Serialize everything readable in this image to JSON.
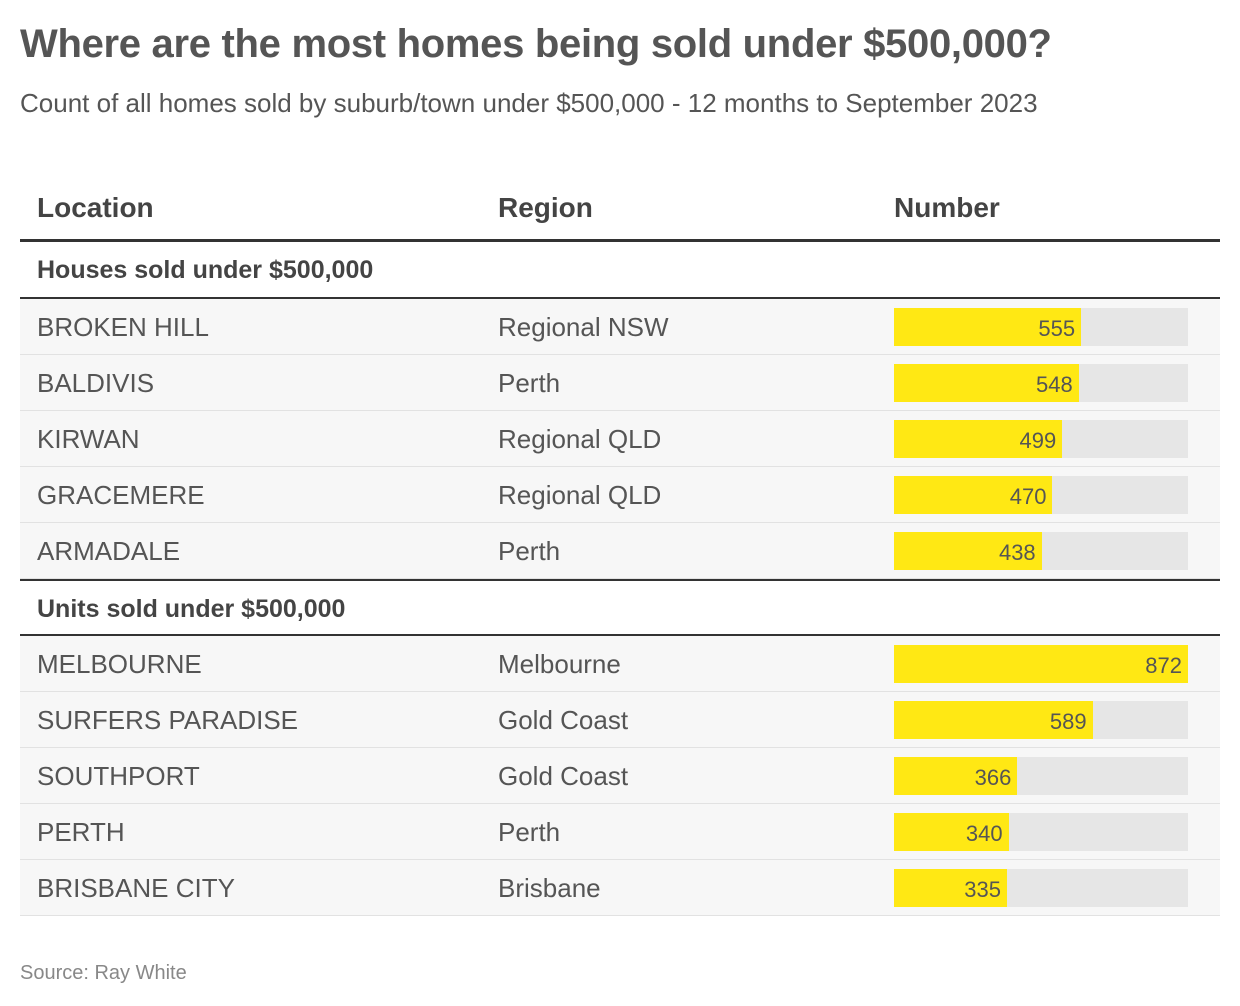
{
  "title": "Where are the most homes being sold under $500,000?",
  "subtitle": "Count of all homes sold by suburb/town under $500,000 - 12 months to September 2023",
  "columns": {
    "location": "Location",
    "region": "Region",
    "number": "Number"
  },
  "bar_max": 872,
  "colors": {
    "bar": "#ffe814",
    "track": "#e6e6e6"
  },
  "groups": [
    {
      "label": "Houses sold under $500,000",
      "rows": [
        {
          "location": "BROKEN HILL",
          "region": "Regional NSW",
          "number": 555
        },
        {
          "location": "BALDIVIS",
          "region": "Perth",
          "number": 548
        },
        {
          "location": "KIRWAN",
          "region": "Regional QLD",
          "number": 499
        },
        {
          "location": "GRACEMERE",
          "region": "Regional QLD",
          "number": 470
        },
        {
          "location": "ARMADALE",
          "region": "Perth",
          "number": 438
        }
      ]
    },
    {
      "label": "Units sold under $500,000",
      "rows": [
        {
          "location": "MELBOURNE",
          "region": "Melbourne",
          "number": 872
        },
        {
          "location": "SURFERS PARADISE",
          "region": "Gold Coast",
          "number": 589
        },
        {
          "location": "SOUTHPORT",
          "region": "Gold Coast",
          "number": 366
        },
        {
          "location": "PERTH",
          "region": "Perth",
          "number": 340
        },
        {
          "location": "BRISBANE CITY",
          "region": "Brisbane",
          "number": 335
        }
      ]
    }
  ],
  "source": "Source: Ray White",
  "chart_data": {
    "type": "table",
    "title": "Where are the most homes being sold under $500,000?",
    "subtitle": "Count of all homes sold by suburb/town under $500,000 - 12 months to September 2023",
    "columns": [
      "Location",
      "Region",
      "Number"
    ],
    "groups": [
      {
        "name": "Houses sold under $500,000",
        "categories": [
          "BROKEN HILL",
          "BALDIVIS",
          "KIRWAN",
          "GRACEMERE",
          "ARMADALE"
        ],
        "regions": [
          "Regional NSW",
          "Perth",
          "Regional QLD",
          "Regional QLD",
          "Perth"
        ],
        "values": [
          555,
          548,
          499,
          470,
          438
        ]
      },
      {
        "name": "Units sold under $500,000",
        "categories": [
          "MELBOURNE",
          "SURFERS PARADISE",
          "SOUTHPORT",
          "PERTH",
          "BRISBANE CITY"
        ],
        "regions": [
          "Melbourne",
          "Gold Coast",
          "Gold Coast",
          "Perth",
          "Brisbane"
        ],
        "values": [
          872,
          589,
          366,
          340,
          335
        ]
      }
    ],
    "bar_range": [
      0,
      872
    ],
    "source": "Source: Ray White"
  }
}
